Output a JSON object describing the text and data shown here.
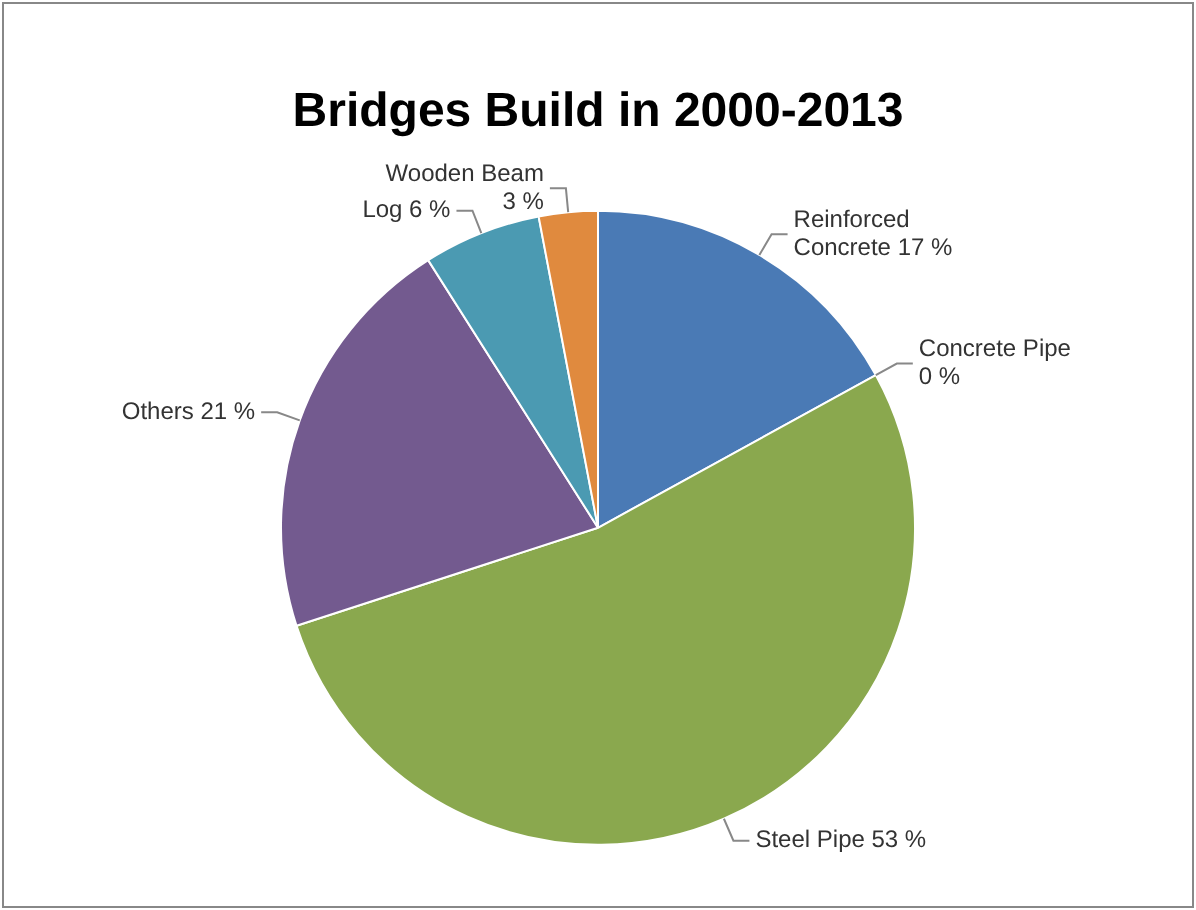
{
  "chart_data": {
    "type": "pie",
    "title": "Bridges Build in 2000-2013",
    "categories": [
      "Reinforced Concrete",
      "Concrete Pipe",
      "Steel Pipe",
      "Others",
      "Log",
      "Wooden Beam"
    ],
    "values": [
      17,
      0,
      53,
      21,
      6,
      3
    ],
    "value_labels": [
      "17 %",
      "0 %",
      "53 %",
      "21 %",
      "6 %",
      "3 %"
    ],
    "colors": [
      "#4a7ab5",
      "#b94a48",
      "#8aa84e",
      "#735a8f",
      "#4b9ab2",
      "#e08a3e"
    ],
    "legend": false
  }
}
